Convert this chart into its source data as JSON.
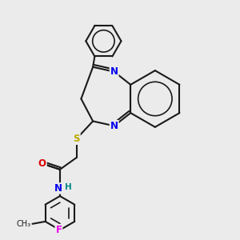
{
  "background_color": "#ebebeb",
  "bond_color": "#1a1a1a",
  "atom_colors": {
    "N": "#0000ee",
    "O": "#dd0000",
    "S": "#bbaa00",
    "F": "#ee00ee",
    "H": "#008888",
    "C": "#1a1a1a"
  },
  "figsize": [
    3.0,
    3.0
  ],
  "dpi": 100
}
